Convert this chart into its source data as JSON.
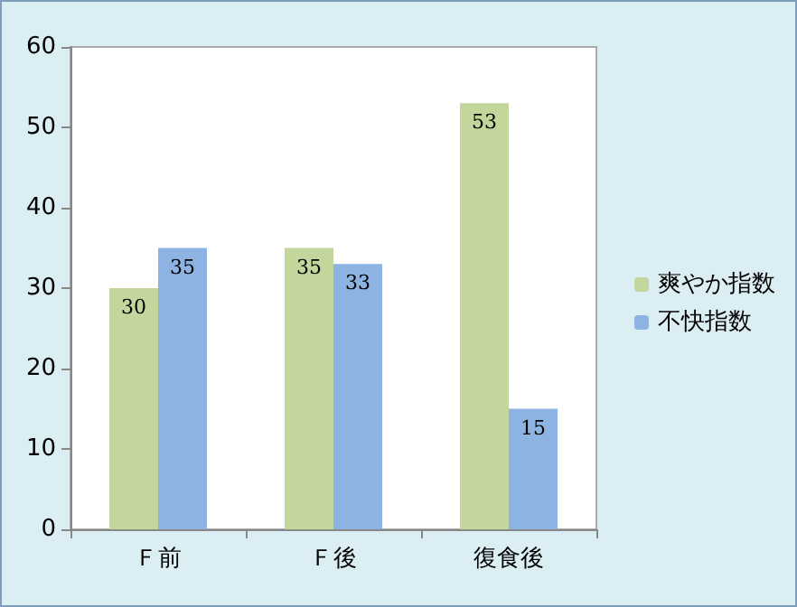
{
  "chart_data": {
    "type": "bar",
    "categories": [
      "Ｆ前",
      "Ｆ後",
      "復食後"
    ],
    "series": [
      {
        "name": "爽やか指数",
        "color": "#c3d69b",
        "values": [
          30,
          35,
          53
        ]
      },
      {
        "name": "不快指数",
        "color": "#8db3e2",
        "values": [
          35,
          33,
          15
        ]
      }
    ],
    "ylim": [
      0,
      60
    ],
    "yticks": [
      0,
      10,
      20,
      30,
      40,
      50,
      60
    ],
    "grid": false,
    "legend": "right",
    "data_labels": true
  }
}
